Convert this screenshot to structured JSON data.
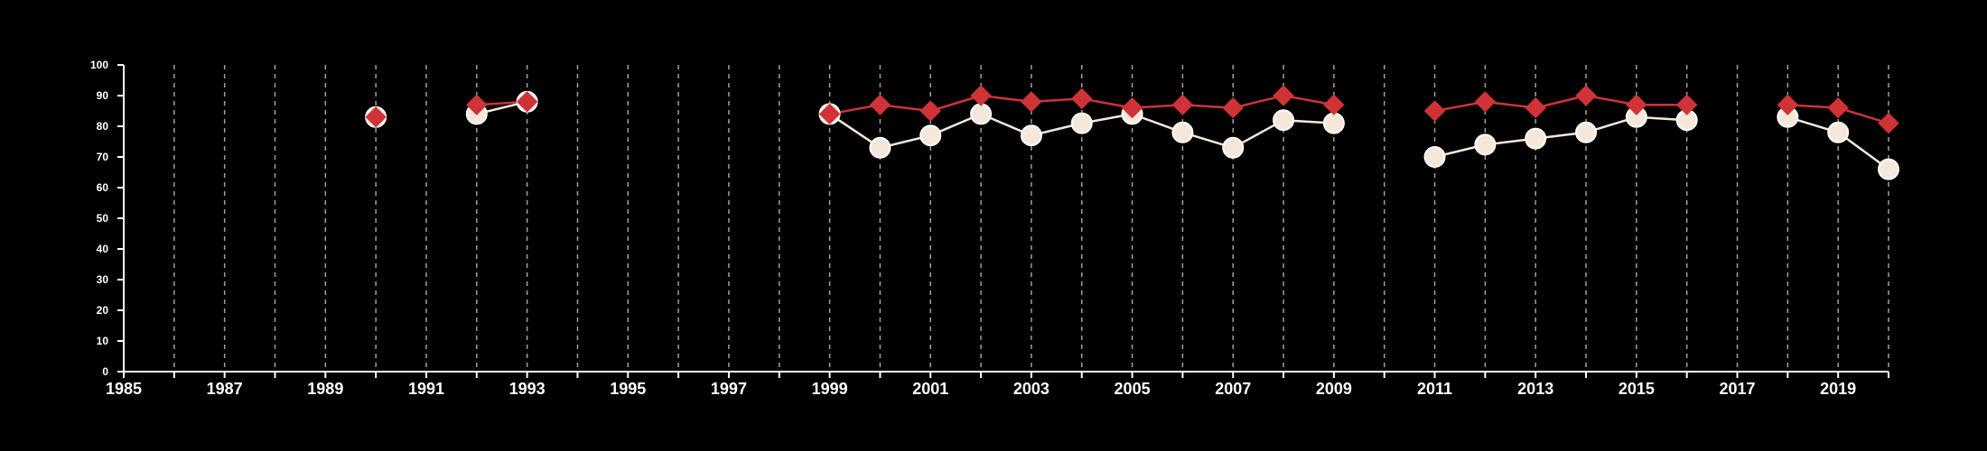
{
  "chart_data": {
    "type": "line",
    "title": "",
    "xlabel": "",
    "ylabel": "",
    "xlim": [
      1985,
      2020
    ],
    "ylim": [
      0,
      100
    ],
    "x_ticks": [
      1985,
      1987,
      1989,
      1991,
      1993,
      1995,
      1997,
      1999,
      2001,
      2003,
      2005,
      2007,
      2009,
      2011,
      2013,
      2015,
      2017,
      2019
    ],
    "y_ticks": [
      0,
      10,
      20,
      30,
      40,
      50,
      60,
      70,
      80,
      90,
      100
    ],
    "grid": "vertical dashed lines at every year",
    "legend": "none",
    "x": [
      1985,
      1986,
      1987,
      1988,
      1989,
      1990,
      1991,
      1992,
      1993,
      1994,
      1995,
      1996,
      1997,
      1998,
      1999,
      2000,
      2001,
      2002,
      2003,
      2004,
      2005,
      2006,
      2007,
      2008,
      2009,
      2010,
      2011,
      2012,
      2013,
      2014,
      2015,
      2016,
      2017,
      2018,
      2019,
      2020
    ],
    "series": [
      {
        "marker": "circle",
        "color": "#f5e8da",
        "values": [
          null,
          null,
          null,
          null,
          null,
          83,
          null,
          84,
          88,
          null,
          null,
          null,
          null,
          null,
          84,
          73,
          77,
          84,
          77,
          81,
          84,
          78,
          73,
          82,
          81,
          null,
          70,
          74,
          76,
          78,
          83,
          82,
          null,
          83,
          78,
          66
        ]
      },
      {
        "marker": "diamond",
        "color": "#cf3338",
        "values": [
          null,
          null,
          null,
          null,
          null,
          83,
          null,
          87,
          88,
          null,
          null,
          null,
          null,
          null,
          84,
          87,
          85,
          90,
          88,
          89,
          86,
          87,
          86,
          90,
          87,
          null,
          85,
          88,
          86,
          90,
          87,
          87,
          null,
          87,
          86,
          81
        ]
      }
    ],
    "colors": {
      "background": "#000000",
      "axis": "#ffffff",
      "grid": "#bbbbbb"
    }
  }
}
